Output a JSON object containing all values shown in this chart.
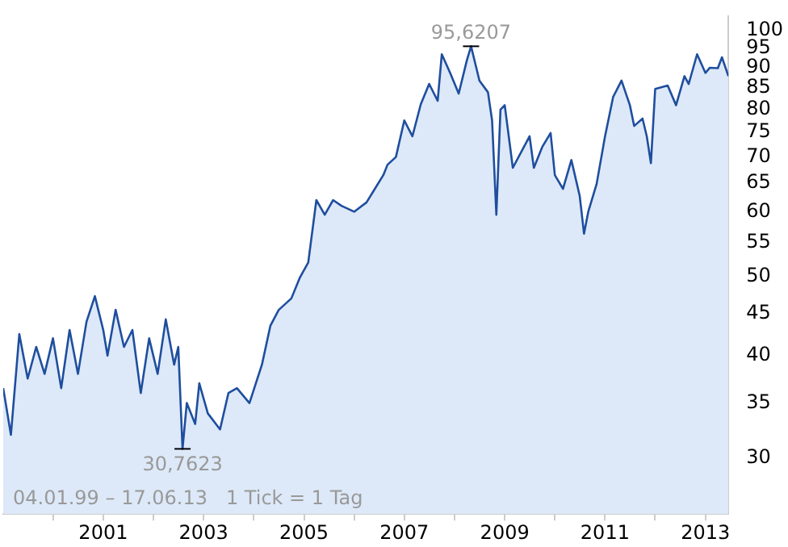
{
  "chart_data": {
    "type": "area",
    "x": [
      "1999-01-04",
      "1999-03",
      "1999-05",
      "1999-07",
      "1999-09",
      "1999-11",
      "2000-01",
      "2000-03",
      "2000-05",
      "2000-07",
      "2000-09",
      "2000-11",
      "2001-01",
      "2001-02",
      "2001-04",
      "2001-06",
      "2001-08",
      "2001-10",
      "2001-12",
      "2002-02",
      "2002-04",
      "2002-06",
      "2002-07",
      "2002-08",
      "2002-09",
      "2002-11",
      "2002-12",
      "2003-02",
      "2003-05",
      "2003-07",
      "2003-09",
      "2003-12",
      "2004-03",
      "2004-05",
      "2004-07",
      "2004-10",
      "2004-12",
      "2005-02",
      "2005-04",
      "2005-06",
      "2005-08",
      "2005-10",
      "2006-01",
      "2006-04",
      "2006-06",
      "2006-08",
      "2006-09",
      "2006-11",
      "2007-01",
      "2007-03",
      "2007-05",
      "2007-07",
      "2007-09",
      "2007-10",
      "2007-12",
      "2008-02",
      "2008-04",
      "2008-05",
      "2008-07",
      "2008-09",
      "2008-10",
      "2008-11",
      "2008-12",
      "2009-01",
      "2009-03",
      "2009-05",
      "2009-07",
      "2009-08",
      "2009-10",
      "2009-12",
      "2010-01",
      "2010-03",
      "2010-05",
      "2010-07",
      "2010-08",
      "2010-09",
      "2010-11",
      "2011-01",
      "2011-03",
      "2011-05",
      "2011-07",
      "2011-08",
      "2011-10",
      "2011-11",
      "2011-12",
      "2012-01",
      "2012-04",
      "2012-06",
      "2012-08",
      "2012-09",
      "2012-11",
      "2013-01",
      "2013-02",
      "2013-04",
      "2013-05",
      "2013-06-17"
    ],
    "series": [
      {
        "color": "#1f4e9e",
        "values": [
          36.5,
          32,
          42.5,
          37.5,
          41,
          38,
          42,
          36.5,
          43,
          38,
          44,
          47.3,
          43,
          40,
          45.5,
          41,
          43,
          36,
          42,
          38,
          44.3,
          39,
          41,
          30.76,
          35,
          33,
          37,
          34,
          32.5,
          36,
          36.5,
          35,
          39,
          43.5,
          45.5,
          47,
          49.8,
          52,
          62,
          59.5,
          62,
          61,
          60,
          61.6,
          64,
          66.5,
          68.5,
          70,
          77.6,
          74.2,
          81.2,
          86,
          82,
          93.5,
          88.7,
          83.7,
          92,
          95.6207,
          86.8,
          84,
          77.6,
          59.5,
          80,
          81,
          67.9,
          71,
          74.2,
          67.9,
          72,
          74.9,
          66.5,
          64,
          69.4,
          62.7,
          56.4,
          60,
          64.9,
          74.2,
          82.9,
          86.8,
          81,
          76.4,
          78,
          74.2,
          68.8,
          84.8,
          85.6,
          81,
          87.9,
          86,
          93.5,
          88.7,
          90,
          89.9,
          92.7,
          87.9
        ]
      }
    ],
    "xlim": [
      "1999-01-04",
      "2013-06-17"
    ],
    "xticks": [
      {
        "value": "2000",
        "label": null
      },
      {
        "value": "2001",
        "label": "2001"
      },
      {
        "value": "2002",
        "label": null
      },
      {
        "value": "2003",
        "label": "2003"
      },
      {
        "value": "2004",
        "label": null
      },
      {
        "value": "2005",
        "label": "2005"
      },
      {
        "value": "2006",
        "label": null
      },
      {
        "value": "2007",
        "label": "2007"
      },
      {
        "value": "2008",
        "label": null
      },
      {
        "value": "2009",
        "label": "2009"
      },
      {
        "value": "2010",
        "label": null
      },
      {
        "value": "2011",
        "label": "2011"
      },
      {
        "value": "2012",
        "label": null
      },
      {
        "value": "2013",
        "label": "2013"
      }
    ],
    "ylim": [
      25.6,
      104
    ],
    "yticks": [
      30,
      35,
      40,
      45,
      50,
      55,
      60,
      65,
      70,
      75,
      80,
      85,
      90,
      95,
      100
    ],
    "log": true,
    "grid": false,
    "legend": false,
    "annotations": [
      {
        "text": "95,6207",
        "x": "2008-05",
        "y": 95.6207
      },
      {
        "text": "30,7623",
        "x": "2002-08",
        "y": 30.7623
      },
      "04.01.99 – 17.06.13   1 Tick = 1 Tag"
    ]
  }
}
